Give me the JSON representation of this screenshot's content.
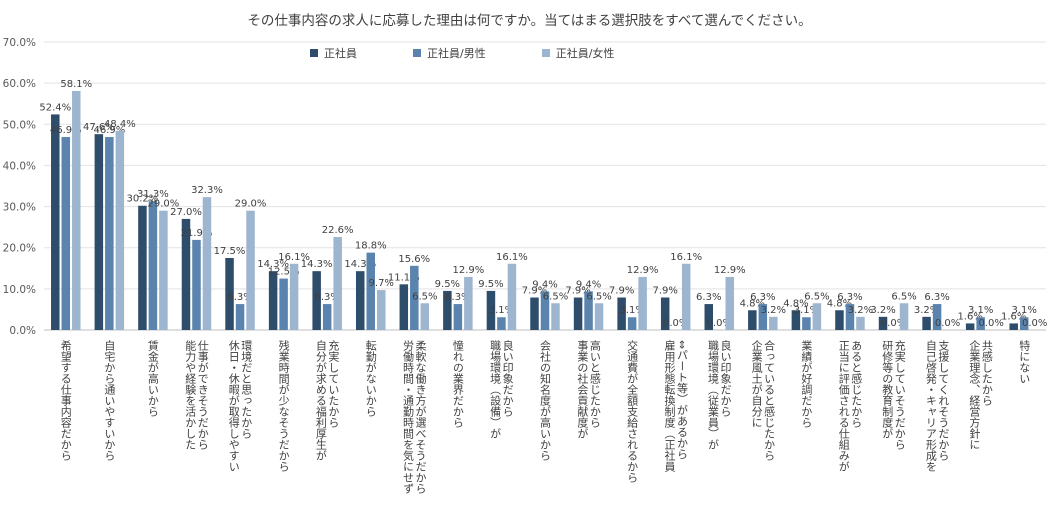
{
  "chart_data": {
    "type": "bar",
    "title": "その仕事内容の求人に応募した理由は何ですか。当てはまる選択肢をすべて選んでください。",
    "ylim": [
      0,
      70
    ],
    "yticks": [
      "0.0%",
      "10.0%",
      "20.0%",
      "30.0%",
      "40.0%",
      "50.0%",
      "60.0%",
      "70.0%"
    ],
    "grid": true,
    "legend_position": "top",
    "colors": [
      "#2E4D6B",
      "#5A83AD",
      "#9DB5CE"
    ],
    "series": [
      {
        "name": "正社員",
        "values": [
          52.4,
          47.6,
          30.2,
          27.0,
          17.5,
          14.3,
          14.3,
          14.3,
          11.1,
          9.5,
          9.5,
          7.9,
          7.9,
          7.9,
          7.9,
          6.3,
          4.8,
          4.8,
          4.8,
          3.2,
          3.2,
          1.6,
          1.6
        ]
      },
      {
        "name": "正社員/男性",
        "values": [
          46.9,
          46.9,
          31.3,
          21.9,
          6.3,
          12.5,
          6.3,
          18.8,
          15.6,
          6.3,
          3.1,
          9.4,
          9.4,
          3.1,
          0.0,
          0.0,
          6.3,
          3.1,
          6.3,
          0.0,
          6.3,
          3.1,
          3.1
        ]
      },
      {
        "name": "正社員/女性",
        "values": [
          58.1,
          48.4,
          29.0,
          32.3,
          29.0,
          16.1,
          22.6,
          9.7,
          6.5,
          12.9,
          16.1,
          6.5,
          6.5,
          12.9,
          16.1,
          12.9,
          3.2,
          6.5,
          3.2,
          6.5,
          0.0,
          0.0,
          0.0
        ]
      }
    ],
    "labels": [
      {
        "s0": "52.4%",
        "s1": "46.9%",
        "s2": "58.1%"
      },
      {
        "s0": "47.6%",
        "s1": "46.9%",
        "s2": "48.4%"
      },
      {
        "s0": "30.2%",
        "s1": "31.3%",
        "s2": "29.0%"
      },
      {
        "s0": "27.0%",
        "s1": "21.9%",
        "s2": "32.3%"
      },
      {
        "s0": "17.5%",
        "s1": "6.3%",
        "s2": "29.0%"
      },
      {
        "s0": "14.3%",
        "s1": "12.5%",
        "s2": "16.1%"
      },
      {
        "s0": "14.3%",
        "s1": "6.3%",
        "s2": "22.6%"
      },
      {
        "s0": "14.3%",
        "s1": "18.8%",
        "s2": "9.7%"
      },
      {
        "s0": "11.1%",
        "s1": "15.6%",
        "s2": "6.5%"
      },
      {
        "s0": "9.5%",
        "s1": "6.3%",
        "s2": "12.9%"
      },
      {
        "s0": "9.5%",
        "s1": "3.1%",
        "s2": "16.1%"
      },
      {
        "s0": "7.9%",
        "s1": "9.4%",
        "s2": "6.5%"
      },
      {
        "s0": "7.9%",
        "s1": "9.4%",
        "s2": "6.5%"
      },
      {
        "s0": "7.9%",
        "s1": "3.1%",
        "s2": "12.9%"
      },
      {
        "s0": "7.9%",
        "s1": "0.0%",
        "s2": "16.1%"
      },
      {
        "s0": "6.3%",
        "s1": "0.0%",
        "s2": "12.9%"
      },
      {
        "s0": "4.8%",
        "s1": "6.3%",
        "s2": "3.2%"
      },
      {
        "s0": "4.8%",
        "s1": "3.1%",
        "s2": "6.5%"
      },
      {
        "s0": "4.8%",
        "s1": "6.3%",
        "s2": "3.2%"
      },
      {
        "s0": "3.2%",
        "s1": "0.0%",
        "s2": "6.5%"
      },
      {
        "s0": "3.2%",
        "s1": "6.3%",
        "s2": "0.0%"
      },
      {
        "s0": "1.6%",
        "s1": "3.1%",
        "s2": "0.0%"
      },
      {
        "s0": "1.6%",
        "s1": "3.1%",
        "s2": "0.0%"
      }
    ],
    "categories": [
      [
        "希望する仕事内容だから"
      ],
      [
        "自宅から通いやすいから"
      ],
      [
        "賃金が高いから"
      ],
      [
        "能力や経験を活かした",
        "仕事ができそうだから"
      ],
      [
        "休日・休暇が取得しやすい",
        "環境だと思ったから"
      ],
      [
        "残業時間が少なそうだから"
      ],
      [
        "自分が求める福利厚生が",
        "充実していたから"
      ],
      [
        "転勤がないから"
      ],
      [
        "労働時間・通勤時間を気にせず",
        "柔軟な働き方が選べそうだから"
      ],
      [
        "憧れの業界だから"
      ],
      [
        "職場環境（設備）が",
        "良い印象だから"
      ],
      [
        "会社の知名度が高いから"
      ],
      [
        "事業の社会貢献度が",
        "高いと感じたから"
      ],
      [
        "交通費が全額支給されるから"
      ],
      [
        "雇用形態転換制度（正社員",
        "⇔パート等）があるから"
      ],
      [
        "職場環境（従業員）が",
        "良い印象だから"
      ],
      [
        "企業風土が自分に",
        "合っていると感じたから"
      ],
      [
        "業績が好調だから"
      ],
      [
        "正当に評価される仕組みが",
        "あると感じたから"
      ],
      [
        "研修等の教育制度が",
        "充実していそうだから"
      ],
      [
        "自己啓発・キャリア形成を",
        "支援してくれそうだから"
      ],
      [
        "企業理念、経営方針に",
        "共感したから"
      ],
      [
        "特にない"
      ]
    ]
  }
}
